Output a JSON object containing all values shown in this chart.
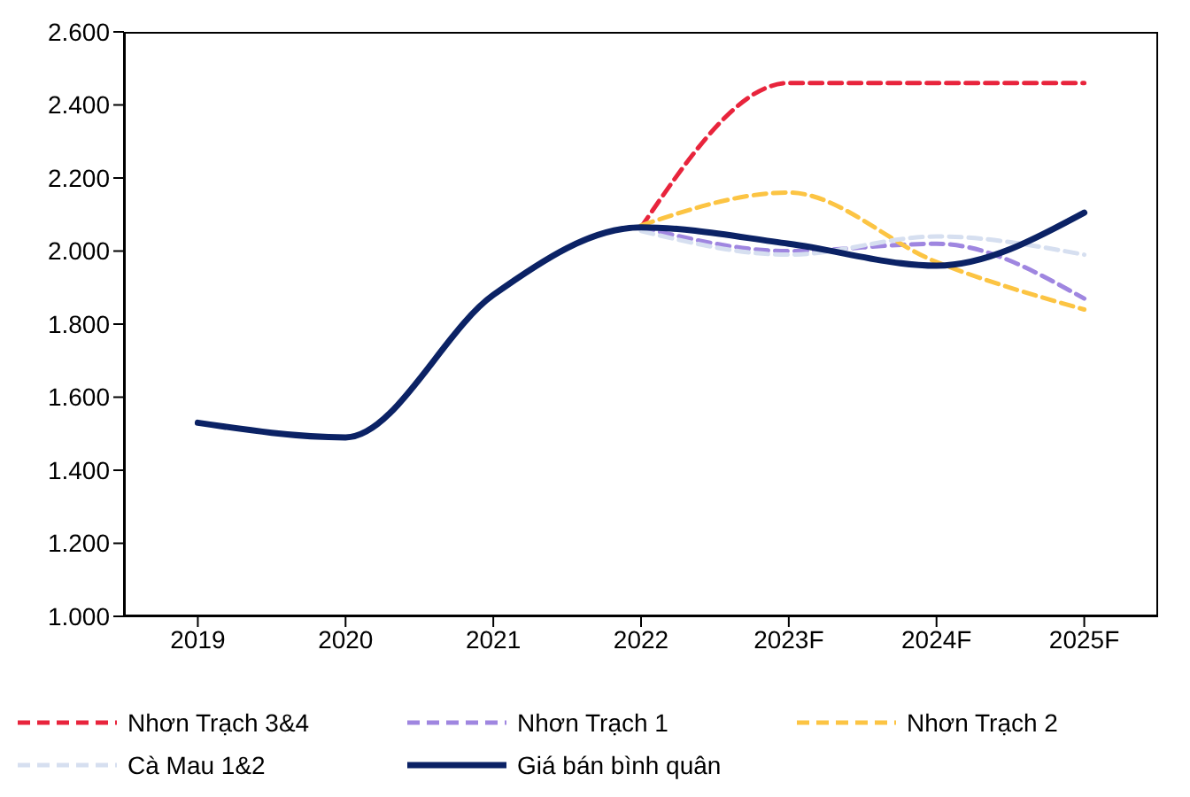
{
  "chart_data": {
    "type": "line",
    "categories": [
      "2019",
      "2020",
      "2021",
      "2022",
      "2023F",
      "2024F",
      "2025F"
    ],
    "series": [
      {
        "name": "Nhơn Trạch 3&4",
        "color": "#e8243c",
        "line_style": "dashed",
        "values": [
          null,
          null,
          null,
          2065,
          2460,
          2460,
          2460
        ]
      },
      {
        "name": "Nhơn Trạch 1",
        "color": "#9f86e0",
        "line_style": "dashed",
        "values": [
          null,
          null,
          null,
          2065,
          2000,
          2020,
          1870
        ]
      },
      {
        "name": "Nhơn Trạch 2",
        "color": "#fcc443",
        "line_style": "dashed",
        "values": [
          null,
          null,
          null,
          2070,
          2160,
          1970,
          1840
        ]
      },
      {
        "name": "Cà Mau 1&2",
        "color": "#d6dff0",
        "line_style": "dashed",
        "values": [
          null,
          null,
          null,
          2055,
          1990,
          2040,
          1990
        ]
      },
      {
        "name": "Giá bán bình quân",
        "color": "#0b2265",
        "line_style": "solid",
        "values": [
          1530,
          1490,
          1880,
          2065,
          2020,
          1960,
          2105
        ]
      }
    ],
    "ylim": [
      1000,
      2600
    ],
    "yticks": [
      {
        "value": 1000,
        "label": "1.000"
      },
      {
        "value": 1200,
        "label": "1.200"
      },
      {
        "value": 1400,
        "label": "1.400"
      },
      {
        "value": 1600,
        "label": "1.600"
      },
      {
        "value": 1800,
        "label": "1.800"
      },
      {
        "value": 2000,
        "label": "2.000"
      },
      {
        "value": 2200,
        "label": "2.200"
      },
      {
        "value": 2400,
        "label": "2.400"
      },
      {
        "value": 2600,
        "label": "2.600"
      }
    ],
    "grid": false,
    "legend": "bottom",
    "marker": "none"
  }
}
